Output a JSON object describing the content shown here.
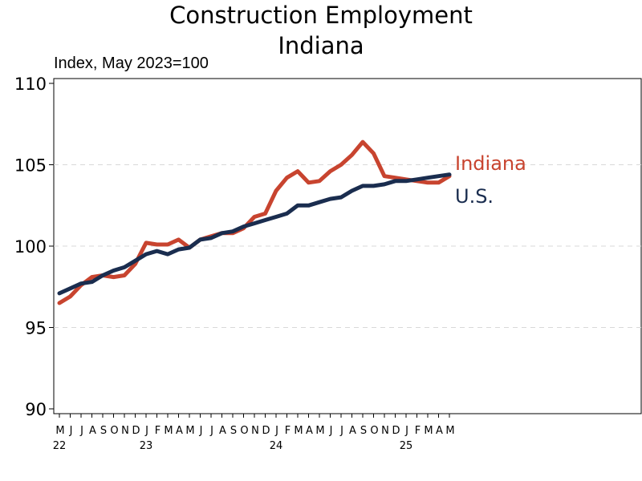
{
  "chart_data": {
    "type": "line",
    "title": "Construction Employment",
    "subtitle": "Indiana",
    "ylabel": "Index, May 2023=100",
    "xlabel": "",
    "ylim": [
      90,
      110
    ],
    "yticks": [
      "90",
      "95",
      "100",
      "105",
      "110"
    ],
    "grid": "horizontal dashed",
    "months": [
      "M",
      "J",
      "J",
      "A",
      "S",
      "O",
      "N",
      "D",
      "J",
      "F",
      "M",
      "A",
      "M",
      "J",
      "J",
      "A",
      "S",
      "O",
      "N",
      "D",
      "J",
      "F",
      "M",
      "A",
      "M",
      "J",
      "J",
      "A",
      "S",
      "O",
      "N",
      "D",
      "J",
      "F",
      "M",
      "A",
      "M"
    ],
    "years": [
      {
        "label": "22",
        "index": 0
      },
      {
        "label": "23",
        "index": 8
      },
      {
        "label": "24",
        "index": 20
      },
      {
        "label": "25",
        "index": 32
      }
    ],
    "series": [
      {
        "name": "Indiana",
        "color": "#c8442f",
        "values": [
          96.5,
          96.9,
          97.6,
          98.1,
          98.2,
          98.1,
          98.2,
          98.9,
          100.2,
          100.1,
          100.1,
          100.4,
          99.9,
          100.4,
          100.6,
          100.8,
          100.8,
          101.1,
          101.8,
          102.0,
          103.4,
          104.2,
          104.6,
          103.9,
          104.0,
          104.6,
          105.0,
          105.6,
          106.4,
          105.7,
          104.3,
          104.2,
          104.1,
          104.0,
          103.9,
          103.9,
          104.3
        ]
      },
      {
        "name": "U.S.",
        "color": "#1a2d4f",
        "values": [
          97.1,
          97.4,
          97.7,
          97.8,
          98.2,
          98.5,
          98.7,
          99.1,
          99.5,
          99.7,
          99.5,
          99.8,
          99.9,
          100.4,
          100.5,
          100.8,
          100.9,
          101.2,
          101.4,
          101.6,
          101.8,
          102.0,
          102.5,
          102.5,
          102.7,
          102.9,
          103.0,
          103.4,
          103.7,
          103.7,
          103.8,
          104.0,
          104.0,
          104.1,
          104.2,
          104.3,
          104.4
        ]
      }
    ]
  }
}
